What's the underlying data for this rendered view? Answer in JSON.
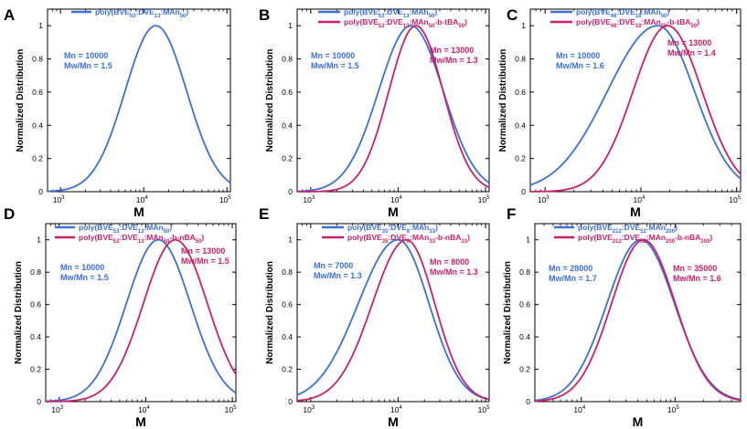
{
  "chart_data": [
    {
      "panel": "A",
      "type": "line",
      "xscale": "log",
      "xlim": [
        700,
        110000
      ],
      "ylim": [
        0,
        1.1
      ],
      "xlabel": "M",
      "ylabel": "Normalized Distribution",
      "xticks": [
        {
          "value": 1000,
          "exp": "3"
        },
        {
          "value": 10000,
          "exp": "4"
        },
        {
          "value": 100000,
          "exp": "5"
        }
      ],
      "yticks": [
        0,
        0.2,
        0.4,
        0.6,
        0.8,
        1
      ],
      "series": [
        {
          "name_parts": [
            [
              "poly(BVE",
              "n"
            ],
            [
              "53",
              "s"
            ],
            [
              ":DVE",
              "n"
            ],
            [
              "13",
              "s"
            ],
            [
              ":MAn",
              "n"
            ],
            [
              "50",
              "s"
            ],
            [
              ")",
              "n"
            ]
          ],
          "color": "#3a6fdc",
          "peak": 14000,
          "sigma": 0.37,
          "skew": 0,
          "annotations": [
            "Mn = 10000",
            "Mw/Mn = 1.5"
          ]
        }
      ]
    },
    {
      "panel": "B",
      "type": "line",
      "xscale": "log",
      "xlim": [
        700,
        110000
      ],
      "ylim": [
        0,
        1.1
      ],
      "xlabel": "M",
      "ylabel": "Normalized Distribution",
      "xticks": [
        {
          "value": 1000,
          "exp": "3"
        },
        {
          "value": 10000,
          "exp": "4"
        },
        {
          "value": 100000,
          "exp": "5"
        }
      ],
      "yticks": [
        0,
        0.2,
        0.4,
        0.6,
        0.8,
        1
      ],
      "series": [
        {
          "name_parts": [
            [
              "poly(BVE",
              "n"
            ],
            [
              "53",
              "s"
            ],
            [
              ":DVE",
              "n"
            ],
            [
              "13",
              "s"
            ],
            [
              ":MAn",
              "n"
            ],
            [
              "50",
              "s"
            ],
            [
              ")",
              "n"
            ]
          ],
          "color": "#3a6fdc",
          "peak": 14000,
          "sigma": 0.37,
          "skew": 0,
          "annotations": [
            "Mn = 10000",
            "Mw/Mn = 1.5"
          ]
        },
        {
          "name_parts": [
            [
              "poly(BVE",
              "n"
            ],
            [
              "53",
              "s"
            ],
            [
              ":DVE",
              "n"
            ],
            [
              "13",
              "s"
            ],
            [
              ":MAn",
              "n"
            ],
            [
              "50",
              "s"
            ],
            [
              "-b-tBA",
              "n"
            ],
            [
              "50",
              "s"
            ],
            [
              ")",
              "n"
            ]
          ],
          "color": "#cc1f6b",
          "peak": 16000,
          "sigma": 0.31,
          "skew": 0,
          "annotations": [
            "Mn = 13000",
            "Mw/Mn = 1.3"
          ]
        }
      ]
    },
    {
      "panel": "C",
      "type": "line",
      "xscale": "log",
      "xlim": [
        700,
        110000
      ],
      "ylim": [
        0,
        1.1
      ],
      "xlabel": "M",
      "ylabel": "Normalized Distribution",
      "xticks": [
        {
          "value": 1000,
          "exp": "3"
        },
        {
          "value": 10000,
          "exp": "4"
        },
        {
          "value": 100000,
          "exp": "5"
        }
      ],
      "yticks": [
        0,
        0.2,
        0.4,
        0.6,
        0.8,
        1
      ],
      "series": [
        {
          "name_parts": [
            [
              "poly(BVE",
              "n"
            ],
            [
              "46",
              "s"
            ],
            [
              ":DVE",
              "n"
            ],
            [
              "18",
              "s"
            ],
            [
              ":MAn",
              "n"
            ],
            [
              "50",
              "s"
            ],
            [
              ")",
              "n"
            ]
          ],
          "color": "#3a6fdc",
          "peak": 15000,
          "sigma": 0.42,
          "skew": 0.25,
          "annotations": [
            "Mn = 10000",
            "Mw/Mn = 1.6"
          ]
        },
        {
          "name_parts": [
            [
              "poly(BVE",
              "n"
            ],
            [
              "46",
              "s"
            ],
            [
              ":DVE",
              "n"
            ],
            [
              "18",
              "s"
            ],
            [
              ":MAn",
              "n"
            ],
            [
              "50",
              "s"
            ],
            [
              "-b-tBA",
              "n"
            ],
            [
              "50",
              "s"
            ],
            [
              ")",
              "n"
            ]
          ],
          "color": "#cc1f6b",
          "peak": 19000,
          "sigma": 0.36,
          "skew": 0,
          "annotations": [
            "Mn = 13000",
            "Mw/Mn = 1.4"
          ]
        }
      ]
    },
    {
      "panel": "D",
      "type": "line",
      "xscale": "log",
      "xlim": [
        700,
        110000
      ],
      "ylim": [
        0,
        1.1
      ],
      "xlabel": "M",
      "ylabel": "Normalized Distribution",
      "xticks": [
        {
          "value": 1000,
          "exp": "3"
        },
        {
          "value": 10000,
          "exp": "4"
        },
        {
          "value": 100000,
          "exp": "5"
        }
      ],
      "yticks": [
        0,
        0.2,
        0.4,
        0.6,
        0.8,
        1
      ],
      "series": [
        {
          "name_parts": [
            [
              "poly(BVE",
              "n"
            ],
            [
              "53",
              "s"
            ],
            [
              ":DVE",
              "n"
            ],
            [
              "13",
              "s"
            ],
            [
              ":MAn",
              "n"
            ],
            [
              "50",
              "s"
            ],
            [
              ")",
              "n"
            ]
          ],
          "color": "#3a6fdc",
          "peak": 14000,
          "sigma": 0.37,
          "skew": 0,
          "annotations": [
            "Mn = 10000",
            "Mw/Mn = 1.5"
          ]
        },
        {
          "name_parts": [
            [
              "poly(BVE",
              "n"
            ],
            [
              "53",
              "s"
            ],
            [
              ":DVE",
              "n"
            ],
            [
              "13",
              "s"
            ],
            [
              ":MAn",
              "n"
            ],
            [
              "50",
              "s"
            ],
            [
              "-b-nBA",
              "n"
            ],
            [
              "50",
              "s"
            ],
            [
              ")",
              "n"
            ]
          ],
          "color": "#cc1f6b",
          "peak": 22000,
          "sigma": 0.37,
          "skew": 0,
          "annotations": [
            "Mn = 13000",
            "Mw/Mn = 1.5"
          ]
        }
      ]
    },
    {
      "panel": "E",
      "type": "line",
      "xscale": "log",
      "xlim": [
        700,
        110000
      ],
      "ylim": [
        0,
        1.1
      ],
      "xlabel": "M",
      "ylabel": "Normalized Distribution",
      "xticks": [
        {
          "value": 1000,
          "exp": "3"
        },
        {
          "value": 10000,
          "exp": "4"
        },
        {
          "value": 100000,
          "exp": "5"
        }
      ],
      "yticks": [
        0,
        0.2,
        0.4,
        0.6,
        0.8,
        1
      ],
      "series": [
        {
          "name_parts": [
            [
              "poly(BVE",
              "n"
            ],
            [
              "35",
              "s"
            ],
            [
              ":DVE",
              "n"
            ],
            [
              "8",
              "s"
            ],
            [
              ":MAn",
              "n"
            ],
            [
              "33",
              "s"
            ],
            [
              ")",
              "n"
            ]
          ],
          "color": "#3a6fdc",
          "peak": 10000,
          "sigma": 0.38,
          "skew": 0.2,
          "annotations": [
            "Mn = 7000",
            "Mw/Mn = 1.3"
          ]
        },
        {
          "name_parts": [
            [
              "poly(BVE",
              "n"
            ],
            [
              "35",
              "s"
            ],
            [
              ":DVE",
              "n"
            ],
            [
              "8",
              "s"
            ],
            [
              ":MAn",
              "n"
            ],
            [
              "33",
              "s"
            ],
            [
              "-b-nBA",
              "n"
            ],
            [
              "33",
              "s"
            ],
            [
              ")",
              "n"
            ]
          ],
          "color": "#cc1f6b",
          "peak": 12500,
          "sigma": 0.34,
          "skew": 0.15,
          "annotations": [
            "Mn = 8000",
            "Mw/Mn = 1.3"
          ]
        }
      ]
    },
    {
      "panel": "F",
      "type": "line",
      "xscale": "log",
      "xlim": [
        3200,
        500000
      ],
      "ylim": [
        0,
        1.1
      ],
      "xlabel": "M",
      "ylabel": "Normalized Distribution",
      "xticks": [
        {
          "value": 10000,
          "exp": "4"
        },
        {
          "value": 100000,
          "exp": "5"
        }
      ],
      "yticks": [
        0,
        0.2,
        0.4,
        0.6,
        0.8,
        1
      ],
      "series": [
        {
          "name_parts": [
            [
              "poly(BVE",
              "n"
            ],
            [
              "212",
              "s"
            ],
            [
              ":DVE",
              "n"
            ],
            [
              "52",
              "s"
            ],
            [
              ":MAn",
              "n"
            ],
            [
              "200",
              "s"
            ],
            [
              ")",
              "n"
            ]
          ],
          "color": "#3a6fdc",
          "peak": 43000,
          "sigma": 0.36,
          "skew": 0,
          "annotations": [
            "Mn = 28000",
            "Mw/Mn = 1.7"
          ]
        },
        {
          "name_parts": [
            [
              "poly(BVE",
              "n"
            ],
            [
              "212",
              "s"
            ],
            [
              ":DVE",
              "n"
            ],
            [
              "52",
              "s"
            ],
            [
              ":MAn",
              "n"
            ],
            [
              "200",
              "s"
            ],
            [
              "-b-nBA",
              "n"
            ],
            [
              "200",
              "s"
            ],
            [
              ")",
              "n"
            ]
          ],
          "color": "#cc1f6b",
          "peak": 46000,
          "sigma": 0.34,
          "skew": 0,
          "annotations": [
            "Mn = 35000",
            "Mw/Mn = 1.6"
          ]
        }
      ]
    }
  ]
}
